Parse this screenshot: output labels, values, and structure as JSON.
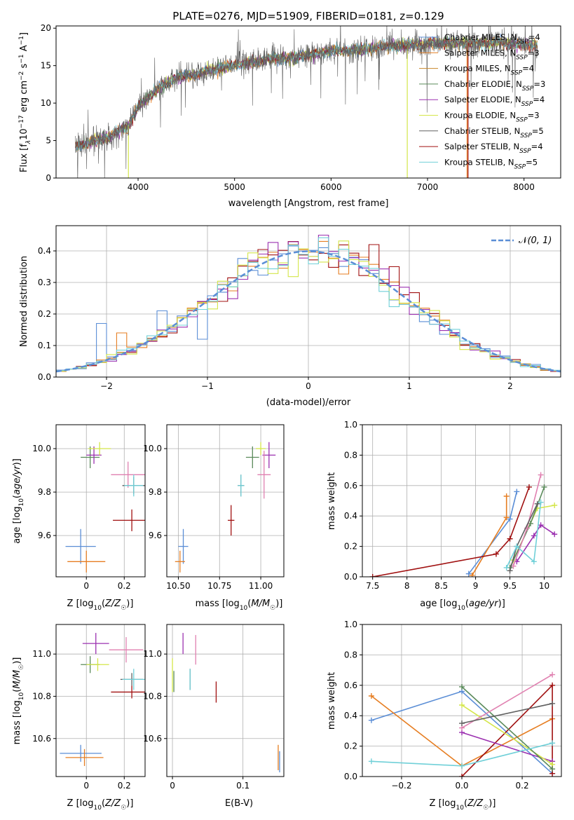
{
  "title": "PLATE=0276, MJD=51909, FIBERID=0181, z=0.129",
  "colors": {
    "chabrier_miles": "#5b8ed6",
    "salpeter_miles": "#e67e22",
    "kroupa_miles": "#c8862a",
    "chabrier_elodie": "#5a8a5a",
    "salpeter_elodie": "#9b30b0",
    "kroupa_elodie": "#d4e64a",
    "chabrier_stelib": "#606060",
    "salpeter_stelib": "#a01010",
    "kroupa_stelib": "#70d0d8",
    "pink": "#e080b0",
    "gaussian": "#5b8ed6"
  },
  "chart_data": [
    {
      "type": "line",
      "panel": "spectrum",
      "xlabel": "wavelength [Angstrom, rest frame]",
      "ylabel_parts": [
        "Flux [f",
        "λ",
        "10",
        "−17",
        " erg cm",
        "−2",
        " s",
        "−1",
        " A",
        "−1",
        "]"
      ],
      "xlim": [
        3150,
        8380
      ],
      "ylim": [
        0,
        20.3
      ],
      "xticks": [
        4000,
        5000,
        6000,
        7000,
        8000
      ],
      "yticks": [
        0,
        5,
        10,
        15,
        20
      ],
      "spectrum_range": [
        3350,
        8140
      ],
      "continuum_points": [
        [
          3350,
          4.2
        ],
        [
          3500,
          4.8
        ],
        [
          3700,
          5.5
        ],
        [
          3900,
          7.0
        ],
        [
          4000,
          9.5
        ],
        [
          4200,
          11.8
        ],
        [
          4400,
          13.5
        ],
        [
          4600,
          13.8
        ],
        [
          4800,
          14.6
        ],
        [
          5000,
          15.0
        ],
        [
          5200,
          15.5
        ],
        [
          5400,
          16.0
        ],
        [
          5600,
          16.0
        ],
        [
          5800,
          16.5
        ],
        [
          6000,
          17.0
        ],
        [
          6200,
          17.0
        ],
        [
          6400,
          17.3
        ],
        [
          6600,
          17.6
        ],
        [
          6800,
          17.8
        ],
        [
          7000,
          17.9
        ],
        [
          7200,
          18.0
        ],
        [
          7400,
          18.0
        ],
        [
          7600,
          18.0
        ],
        [
          7800,
          18.0
        ],
        [
          8000,
          17.8
        ],
        [
          8140,
          17.7
        ]
      ],
      "legend": [
        {
          "label": "Chabrier MILES, N",
          "sub": "SSP",
          "suffix": "=4",
          "color": "#5b8ed6"
        },
        {
          "label": "Salpeter MILES, N",
          "sub": "SSP",
          "suffix": "=3",
          "color": "#e67e22"
        },
        {
          "label": "Kroupa MILES, N",
          "sub": "SSP",
          "suffix": "=4",
          "color": "#c8862a"
        },
        {
          "label": "Chabrier ELODIE, N",
          "sub": "SSP",
          "suffix": "=3",
          "color": "#5a8a5a"
        },
        {
          "label": "Salpeter ELODIE, N",
          "sub": "SSP",
          "suffix": "=4",
          "color": "#9b30b0"
        },
        {
          "label": "Kroupa ELODIE, N",
          "sub": "SSP",
          "suffix": "=3",
          "color": "#d4e64a"
        },
        {
          "label": "Chabrier STELIB, N",
          "sub": "SSP",
          "suffix": "=5",
          "color": "#606060"
        },
        {
          "label": "Salpeter STELIB, N",
          "sub": "SSP",
          "suffix": "=4",
          "color": "#a01010"
        },
        {
          "label": "Kroupa STELIB, N",
          "sub": "SSP",
          "suffix": "=5",
          "color": "#70d0d8"
        }
      ]
    },
    {
      "type": "histogram",
      "panel": "residuals",
      "xlabel": "(data-model)/error",
      "ylabel": "Normed distribution",
      "xlim": [
        -2.5,
        2.5
      ],
      "ylim": [
        0,
        0.48
      ],
      "xticks": [
        -2,
        -1,
        0,
        1,
        2
      ],
      "xticklabels": [
        "−2",
        "−1",
        "0",
        "1",
        "2"
      ],
      "yticks": [
        0.0,
        0.1,
        0.2,
        0.3,
        0.4
      ],
      "bin_width": 0.1,
      "legend_label": "N(0,1)",
      "series_colors": [
        "#5b8ed6",
        "#e67e22",
        "#a01010",
        "#9b30b0",
        "#d4e64a",
        "#70d0d8"
      ],
      "distinct_bins": {
        "#5b8ed6": {
          "-2.05": 0.17,
          "-1.05": 0.12,
          "-1.45": 0.21,
          "0.95": 0.23,
          "2.25": 0.04
        },
        "#e67e22": {
          "-0.15": 0.42,
          "0.55": 0.38,
          "-1.85": 0.14
        },
        "#a01010": {
          "0.85": 0.35,
          "0.65": 0.42,
          "-0.85": 0.24
        },
        "#9b30b0": {
          "-0.45": 0.39,
          "0.15": 0.45
        }
      }
    },
    {
      "type": "errorbar",
      "panel": "age_vs_Z",
      "xlabel": "Z [log10(Z/Z☉)]",
      "ylabel": "age [log10(age/yr)]",
      "xlim": [
        -0.16,
        0.31
      ],
      "ylim": [
        9.41,
        10.11
      ],
      "xticks": [
        0.0,
        0.2
      ],
      "yticks": [
        9.6,
        9.8,
        10.0
      ],
      "points": [
        {
          "x": -0.03,
          "y": 9.55,
          "xerr": 0.08,
          "yerr": 0.08,
          "color": "#5b8ed6"
        },
        {
          "x": 0.0,
          "y": 9.48,
          "xerr": 0.1,
          "yerr": 0.05,
          "color": "#e67e22"
        },
        {
          "x": 0.02,
          "y": 9.96,
          "xerr": 0.05,
          "yerr": 0.05,
          "color": "#5a8a5a"
        },
        {
          "x": 0.04,
          "y": 9.97,
          "xerr": 0.04,
          "yerr": 0.04,
          "color": "#9b30b0"
        },
        {
          "x": 0.07,
          "y": 10.0,
          "xerr": 0.06,
          "yerr": 0.03,
          "color": "#d4e64a"
        },
        {
          "x": 0.22,
          "y": 9.88,
          "xerr": 0.09,
          "yerr": 0.06,
          "color": "#e080b0"
        },
        {
          "x": 0.25,
          "y": 9.83,
          "xerr": 0.06,
          "yerr": 0.04,
          "color": "#606060"
        },
        {
          "x": 0.24,
          "y": 9.67,
          "xerr": 0.1,
          "yerr": 0.05,
          "color": "#a01010"
        },
        {
          "x": 0.25,
          "y": 9.83,
          "xerr": 0.05,
          "yerr": 0.05,
          "color": "#70d0d8"
        }
      ]
    },
    {
      "type": "errorbar",
      "panel": "age_vs_mass",
      "xlabel": "mass [log10(M/M☉)]",
      "xlim": [
        10.43,
        11.14
      ],
      "ylim": [
        9.41,
        10.11
      ],
      "xticks": [
        10.5,
        10.75,
        11.0
      ],
      "xticklabels": [
        "10.50",
        "10.75",
        "11.00"
      ],
      "yticks": [
        9.6,
        9.8,
        10.0
      ],
      "points": [
        {
          "x": 10.53,
          "y": 9.55,
          "xerr": 0.03,
          "yerr": 0.08,
          "color": "#5b8ed6"
        },
        {
          "x": 10.51,
          "y": 9.48,
          "xerr": 0.03,
          "yerr": 0.05,
          "color": "#e67e22"
        },
        {
          "x": 10.95,
          "y": 9.96,
          "xerr": 0.04,
          "yerr": 0.05,
          "color": "#5a8a5a"
        },
        {
          "x": 11.05,
          "y": 9.97,
          "xerr": 0.04,
          "yerr": 0.06,
          "color": "#9b30b0"
        },
        {
          "x": 11.0,
          "y": 10.0,
          "xerr": 0.03,
          "yerr": 0.03,
          "color": "#d4e64a"
        },
        {
          "x": 11.02,
          "y": 9.88,
          "xerr": 0.04,
          "yerr": 0.11,
          "color": "#e080b0"
        },
        {
          "x": 10.88,
          "y": 9.83,
          "xerr": 0.02,
          "yerr": 0.05,
          "color": "#606060"
        },
        {
          "x": 10.82,
          "y": 9.67,
          "xerr": 0.02,
          "yerr": 0.07,
          "color": "#a01010"
        },
        {
          "x": 10.88,
          "y": 9.83,
          "xerr": 0.02,
          "yerr": 0.05,
          "color": "#70d0d8"
        }
      ]
    },
    {
      "type": "line",
      "panel": "weight_vs_age",
      "xlabel": "age [log10(age/yr)]",
      "ylabel": "mass weight",
      "xlim": [
        7.35,
        10.25
      ],
      "ylim": [
        0,
        1.0
      ],
      "xticks": [
        7.5,
        8.0,
        8.5,
        9.0,
        9.5,
        10.0
      ],
      "yticks": [
        0.0,
        0.2,
        0.4,
        0.6,
        0.8,
        1.0
      ],
      "series": [
        {
          "color": "#5b8ed6",
          "points": [
            [
              8.9,
              0.02
            ],
            [
              9.5,
              0.38
            ],
            [
              9.6,
              0.56
            ]
          ]
        },
        {
          "color": "#e67e22",
          "points": [
            [
              8.95,
              0.01
            ],
            [
              9.45,
              0.39
            ],
            [
              9.45,
              0.53
            ]
          ]
        },
        {
          "color": "#a01010",
          "points": [
            [
              7.5,
              0.0
            ],
            [
              9.3,
              0.15
            ],
            [
              9.5,
              0.25
            ],
            [
              9.78,
              0.59
            ]
          ]
        },
        {
          "color": "#9b30b0",
          "points": [
            [
              9.6,
              0.1
            ],
            [
              9.85,
              0.27
            ],
            [
              9.95,
              0.34
            ],
            [
              10.15,
              0.28
            ]
          ]
        },
        {
          "color": "#d4e64a",
          "points": [
            [
              9.55,
              0.11
            ],
            [
              9.9,
              0.45
            ],
            [
              10.15,
              0.47
            ]
          ]
        },
        {
          "color": "#5a8a5a",
          "points": [
            [
              9.5,
              0.06
            ],
            [
              9.8,
              0.35
            ],
            [
              10.0,
              0.59
            ]
          ]
        },
        {
          "color": "#e080b0",
          "points": [
            [
              9.55,
              0.07
            ],
            [
              9.75,
              0.32
            ],
            [
              9.95,
              0.67
            ]
          ]
        },
        {
          "color": "#606060",
          "points": [
            [
              9.5,
              0.04
            ],
            [
              9.6,
              0.2
            ],
            [
              9.9,
              0.48
            ]
          ]
        },
        {
          "color": "#70d0d8",
          "points": [
            [
              9.45,
              0.06
            ],
            [
              9.6,
              0.2
            ],
            [
              9.85,
              0.1
            ],
            [
              9.95,
              0.49
            ]
          ]
        }
      ]
    },
    {
      "type": "errorbar",
      "panel": "mass_vs_Z",
      "xlabel": "Z [log10(Z/Z☉)]",
      "ylabel": "mass [log10(M/M☉)]",
      "xlim": [
        -0.16,
        0.31
      ],
      "ylim": [
        10.42,
        11.14
      ],
      "xticks": [
        0.0,
        0.2
      ],
      "yticks": [
        10.6,
        10.8,
        11.0
      ],
      "points": [
        {
          "x": -0.03,
          "y": 10.53,
          "xerr": 0.11,
          "yerr": 0.04,
          "color": "#5b8ed6"
        },
        {
          "x": -0.01,
          "y": 10.51,
          "xerr": 0.1,
          "yerr": 0.04,
          "color": "#e67e22"
        },
        {
          "x": 0.05,
          "y": 11.05,
          "xerr": 0.07,
          "yerr": 0.05,
          "color": "#9b30b0"
        },
        {
          "x": 0.02,
          "y": 10.95,
          "xerr": 0.05,
          "yerr": 0.04,
          "color": "#5a8a5a"
        },
        {
          "x": 0.06,
          "y": 10.95,
          "xerr": 0.06,
          "yerr": 0.03,
          "color": "#d4e64a"
        },
        {
          "x": 0.21,
          "y": 11.02,
          "xerr": 0.09,
          "yerr": 0.06,
          "color": "#e080b0"
        },
        {
          "x": 0.24,
          "y": 10.88,
          "xerr": 0.06,
          "yerr": 0.03,
          "color": "#606060"
        },
        {
          "x": 0.24,
          "y": 10.82,
          "xerr": 0.11,
          "yerr": 0.03,
          "color": "#a01010"
        },
        {
          "x": 0.25,
          "y": 10.88,
          "xerr": 0.06,
          "yerr": 0.05,
          "color": "#70d0d8"
        }
      ]
    },
    {
      "type": "errorbar",
      "panel": "mass_vs_ebv",
      "xlabel": "E(B-V)",
      "xlim": [
        -0.008,
        0.158
      ],
      "ylim": [
        10.42,
        11.14
      ],
      "xticks": [
        0.0,
        0.1
      ],
      "yticks": [
        10.6,
        10.8,
        11.0
      ],
      "points": [
        {
          "x": 0.0,
          "y": 10.9,
          "xerr": 0,
          "yerr": 0.08,
          "color": "#d4e64a"
        },
        {
          "x": 0.002,
          "y": 10.87,
          "xerr": 0,
          "yerr": 0.05,
          "color": "#5a8a5a"
        },
        {
          "x": 0.015,
          "y": 11.05,
          "xerr": 0,
          "yerr": 0.05,
          "color": "#9b30b0"
        },
        {
          "x": 0.033,
          "y": 11.02,
          "xerr": 0,
          "yerr": 0.07,
          "color": "#e080b0"
        },
        {
          "x": 0.025,
          "y": 10.88,
          "xerr": 0,
          "yerr": 0.05,
          "color": "#606060"
        },
        {
          "x": 0.025,
          "y": 10.88,
          "xerr": 0,
          "yerr": 0.05,
          "color": "#70d0d8"
        },
        {
          "x": 0.062,
          "y": 10.82,
          "xerr": 0,
          "yerr": 0.05,
          "color": "#a01010"
        },
        {
          "x": 0.15,
          "y": 10.51,
          "xerr": 0,
          "yerr": 0.06,
          "color": "#e67e22"
        },
        {
          "x": 0.152,
          "y": 10.49,
          "xerr": 0,
          "yerr": 0.05,
          "color": "#5b8ed6"
        }
      ]
    },
    {
      "type": "line",
      "panel": "weight_vs_Z",
      "xlabel": "Z [log10(Z/Z☉)]",
      "ylabel": "mass weight",
      "xlim": [
        -0.33,
        0.33
      ],
      "ylim": [
        0,
        1.0
      ],
      "xticks": [
        -0.2,
        0.0,
        0.2
      ],
      "xticklabels": [
        "−0.2",
        "0.0",
        "0.2"
      ],
      "yticks": [
        0.0,
        0.2,
        0.4,
        0.6,
        0.8,
        1.0
      ],
      "series": [
        {
          "color": "#5b8ed6",
          "points": [
            [
              -0.3,
              0.37
            ],
            [
              0.0,
              0.56
            ],
            [
              0.3,
              0.02
            ]
          ]
        },
        {
          "color": "#e67e22",
          "points": [
            [
              -0.3,
              0.53
            ],
            [
              0.0,
              0.07
            ],
            [
              0.3,
              0.38
            ]
          ]
        },
        {
          "color": "#a01010",
          "points": [
            [
              0.0,
              0.0
            ],
            [
              0.3,
              0.6
            ],
            [
              0.3,
              0.02
            ]
          ]
        },
        {
          "color": "#9b30b0",
          "points": [
            [
              0.0,
              0.29
            ],
            [
              0.3,
              0.1
            ]
          ]
        },
        {
          "color": "#d4e64a",
          "points": [
            [
              0.0,
              0.47
            ],
            [
              0.3,
              0.08
            ]
          ]
        },
        {
          "color": "#5a8a5a",
          "points": [
            [
              0.0,
              0.59
            ],
            [
              0.3,
              0.05
            ]
          ]
        },
        {
          "color": "#e080b0",
          "points": [
            [
              0.0,
              0.32
            ],
            [
              0.3,
              0.67
            ]
          ]
        },
        {
          "color": "#606060",
          "points": [
            [
              0.0,
              0.35
            ],
            [
              0.3,
              0.48
            ]
          ]
        },
        {
          "color": "#70d0d8",
          "points": [
            [
              -0.3,
              0.1
            ],
            [
              0.0,
              0.07
            ],
            [
              0.3,
              0.22
            ]
          ]
        }
      ]
    }
  ]
}
